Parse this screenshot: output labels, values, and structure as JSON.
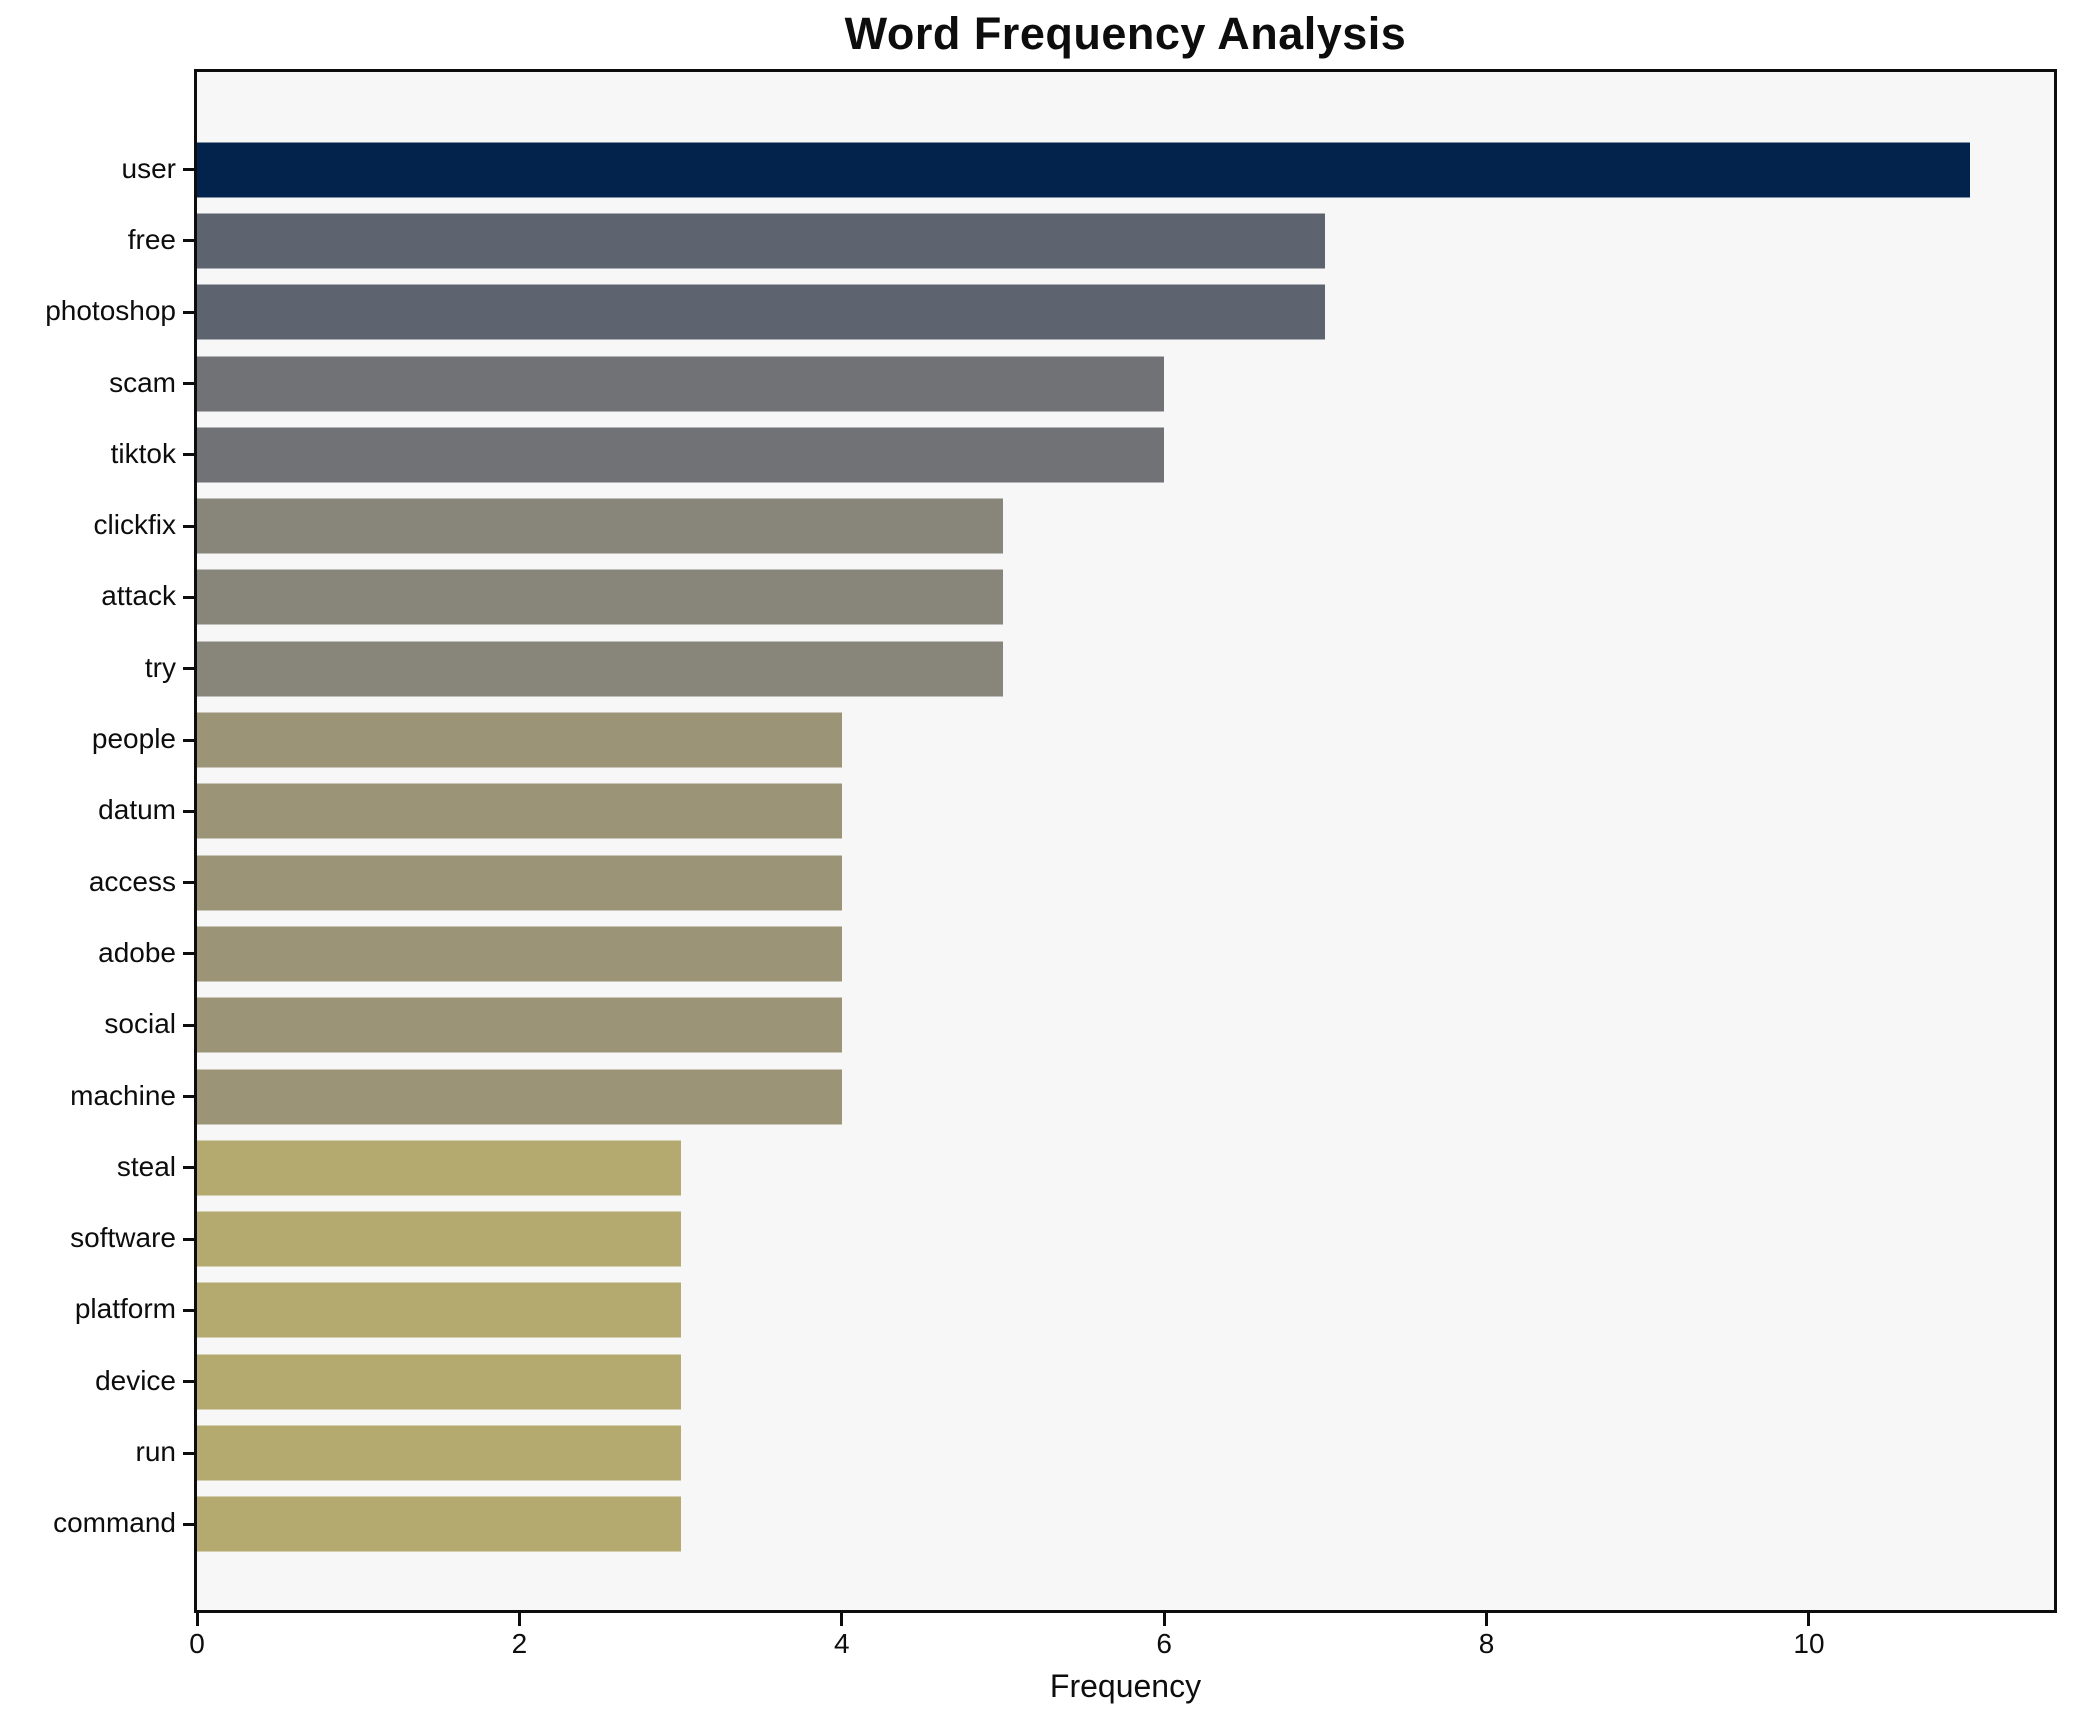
{
  "figure": {
    "background": "#ffffff"
  },
  "chart_data": {
    "type": "bar",
    "orientation": "horizontal",
    "title": "Word Frequency Analysis",
    "xlabel": "Frequency",
    "ylabel": "",
    "categories": [
      "user",
      "free",
      "photoshop",
      "scam",
      "tiktok",
      "clickfix",
      "attack",
      "try",
      "people",
      "datum",
      "access",
      "adobe",
      "social",
      "machine",
      "steal",
      "software",
      "platform",
      "device",
      "run",
      "command"
    ],
    "values": [
      11,
      7,
      7,
      6,
      6,
      5,
      5,
      5,
      4,
      4,
      4,
      4,
      4,
      4,
      3,
      3,
      3,
      3,
      3,
      3
    ],
    "bar_colors": [
      "#03234d",
      "#5e6370",
      "#5e6370",
      "#717276",
      "#717276",
      "#88867a",
      "#88867a",
      "#88867a",
      "#9c9476",
      "#9c9476",
      "#9c9476",
      "#9c9476",
      "#9c9476",
      "#9c9476",
      "#b4a96e",
      "#b4a96e",
      "#b4a96e",
      "#b4a96e",
      "#b4a96e",
      "#b4a96e"
    ],
    "xlim": [
      0,
      11.52
    ],
    "xticks": [
      0,
      2,
      4,
      6,
      8,
      10
    ],
    "grid": false,
    "legend_position": "none",
    "plot_background": "#f7f7f8",
    "spine_color": "#0d0d0d",
    "text_color": "#0d0d0d"
  }
}
